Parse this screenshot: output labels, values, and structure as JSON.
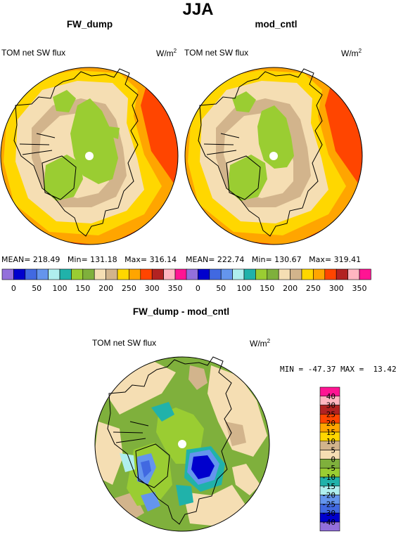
{
  "figure": {
    "title": "JJA"
  },
  "panels": [
    {
      "id": "fw_dump",
      "title": "FW_dump",
      "variable": "TOM net SW flux",
      "units": "W/m",
      "units_sup": "2",
      "stats": {
        "mean_label": "MEAN=",
        "mean": "218.49",
        "min_label": "Min=",
        "min": "131.18",
        "max_label": "Max=",
        "max": "316.14"
      }
    },
    {
      "id": "mod_cntl",
      "title": "mod_cntl",
      "variable": "TOM net SW flux",
      "units": "W/m",
      "units_sup": "2",
      "stats": {
        "mean_label": "MEAN=",
        "mean": "222.74",
        "min_label": "Min=",
        "min": "130.67",
        "max_label": "Max=",
        "max": "319.41"
      }
    },
    {
      "id": "diff",
      "title": "FW_dump - mod_cntl",
      "variable": "TOM net SW flux",
      "units": "W/m",
      "units_sup": "2",
      "stats": {
        "min_label": "MIN =",
        "min": "-47.37",
        "max_label": "MAX =",
        "max": "13.42"
      }
    }
  ],
  "chart_data": [
    {
      "type": "heatmap",
      "projection": "north-polar-stereographic",
      "title": "FW_dump",
      "subtitle": "TOM net SW flux",
      "units": "W/m2",
      "stats": {
        "mean": 218.49,
        "min": 131.18,
        "max": 316.14
      },
      "colorbar": {
        "orientation": "horizontal",
        "tick_labels": [
          "0",
          "50",
          "100",
          "150",
          "200",
          "250",
          "300",
          "350"
        ],
        "colors": [
          "#9370db",
          "#0000cd",
          "#4169e1",
          "#6495ed",
          "#afeeee",
          "#20b2aa",
          "#9acd32",
          "#7fb03c",
          "#f5deb3",
          "#d2b48c",
          "#ffd700",
          "#ffa500",
          "#ff4500",
          "#b22222",
          "#ffb6c1",
          "#ff1493"
        ]
      }
    },
    {
      "type": "heatmap",
      "projection": "north-polar-stereographic",
      "title": "mod_cntl",
      "subtitle": "TOM net SW flux",
      "units": "W/m2",
      "stats": {
        "mean": 222.74,
        "min": 130.67,
        "max": 319.41
      },
      "colorbar": {
        "orientation": "horizontal",
        "tick_labels": [
          "0",
          "50",
          "100",
          "150",
          "200",
          "250",
          "300",
          "350"
        ],
        "colors": [
          "#9370db",
          "#0000cd",
          "#4169e1",
          "#6495ed",
          "#afeeee",
          "#20b2aa",
          "#9acd32",
          "#7fb03c",
          "#f5deb3",
          "#d2b48c",
          "#ffd700",
          "#ffa500",
          "#ff4500",
          "#b22222",
          "#ffb6c1",
          "#ff1493"
        ]
      }
    },
    {
      "type": "heatmap",
      "projection": "north-polar-stereographic",
      "title": "FW_dump - mod_cntl",
      "subtitle": "TOM net SW flux",
      "units": "W/m2",
      "stats": {
        "min": -47.37,
        "max": 13.42
      },
      "colorbar": {
        "orientation": "vertical",
        "tick_labels": [
          "40",
          "30",
          "25",
          "20",
          "15",
          "10",
          "5",
          "0",
          "-5",
          "-10",
          "-15",
          "-20",
          "-25",
          "-30",
          "-40"
        ],
        "colors": [
          "#ff1493",
          "#ffb6c1",
          "#b22222",
          "#ff4500",
          "#ffa500",
          "#ffd700",
          "#d2b48c",
          "#f5deb3",
          "#7fb03c",
          "#9acd32",
          "#20b2aa",
          "#afeeee",
          "#6495ed",
          "#4169e1",
          "#0000cd",
          "#9370db"
        ]
      }
    }
  ]
}
